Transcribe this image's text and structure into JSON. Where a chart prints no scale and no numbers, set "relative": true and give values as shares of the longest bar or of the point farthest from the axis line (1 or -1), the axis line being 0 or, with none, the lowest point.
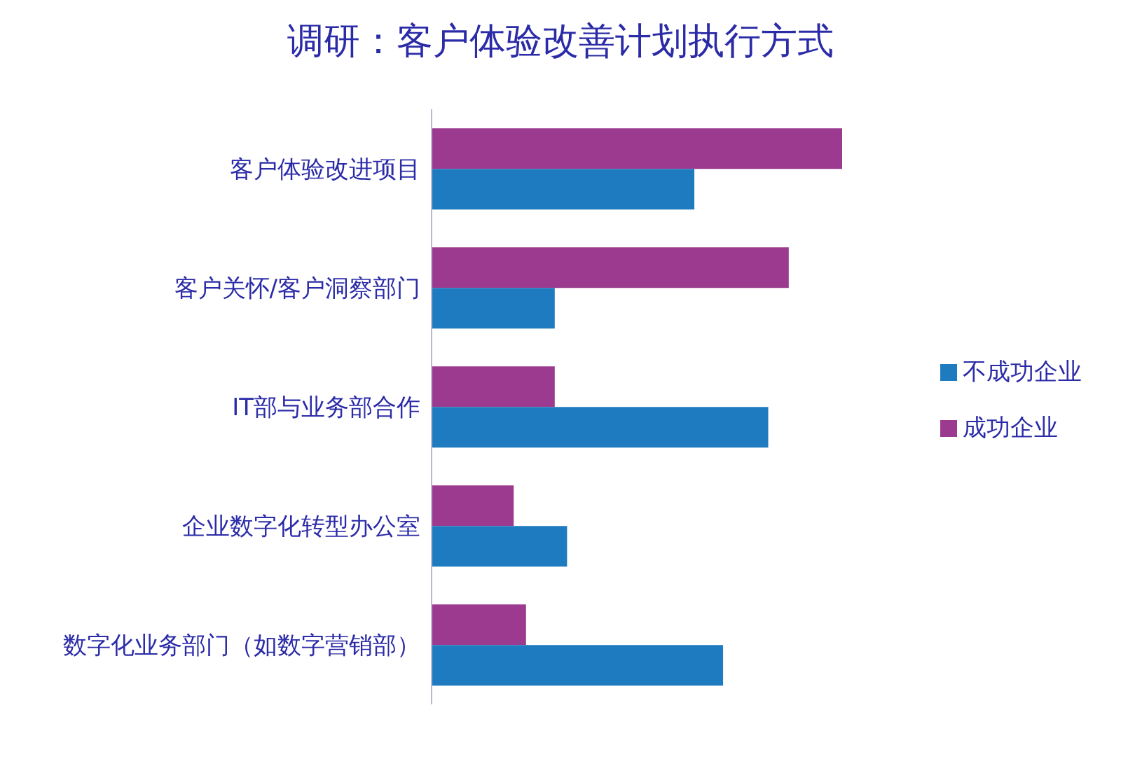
{
  "chart_data": {
    "type": "bar",
    "orientation": "horizontal",
    "relative": true,
    "title": "调研：客户体验改善计划执行方式",
    "categories": [
      "客户体验改进项目",
      "客户关怀/客户洞察部门",
      "IT部与业务部合作",
      "企业数字化转型办公室",
      "数字化业务部门（如数字营销部）"
    ],
    "series": [
      {
        "name": "成功企业",
        "color": "#9b3a8e",
        "values": [
          1,
          0.87,
          0.3,
          0.2,
          0.23
        ]
      },
      {
        "name": "不成功企业",
        "color": "#1f7bbf",
        "values": [
          0.64,
          0.3,
          0.82,
          0.33,
          0.71
        ]
      }
    ],
    "legend": "right",
    "grid": false
  }
}
